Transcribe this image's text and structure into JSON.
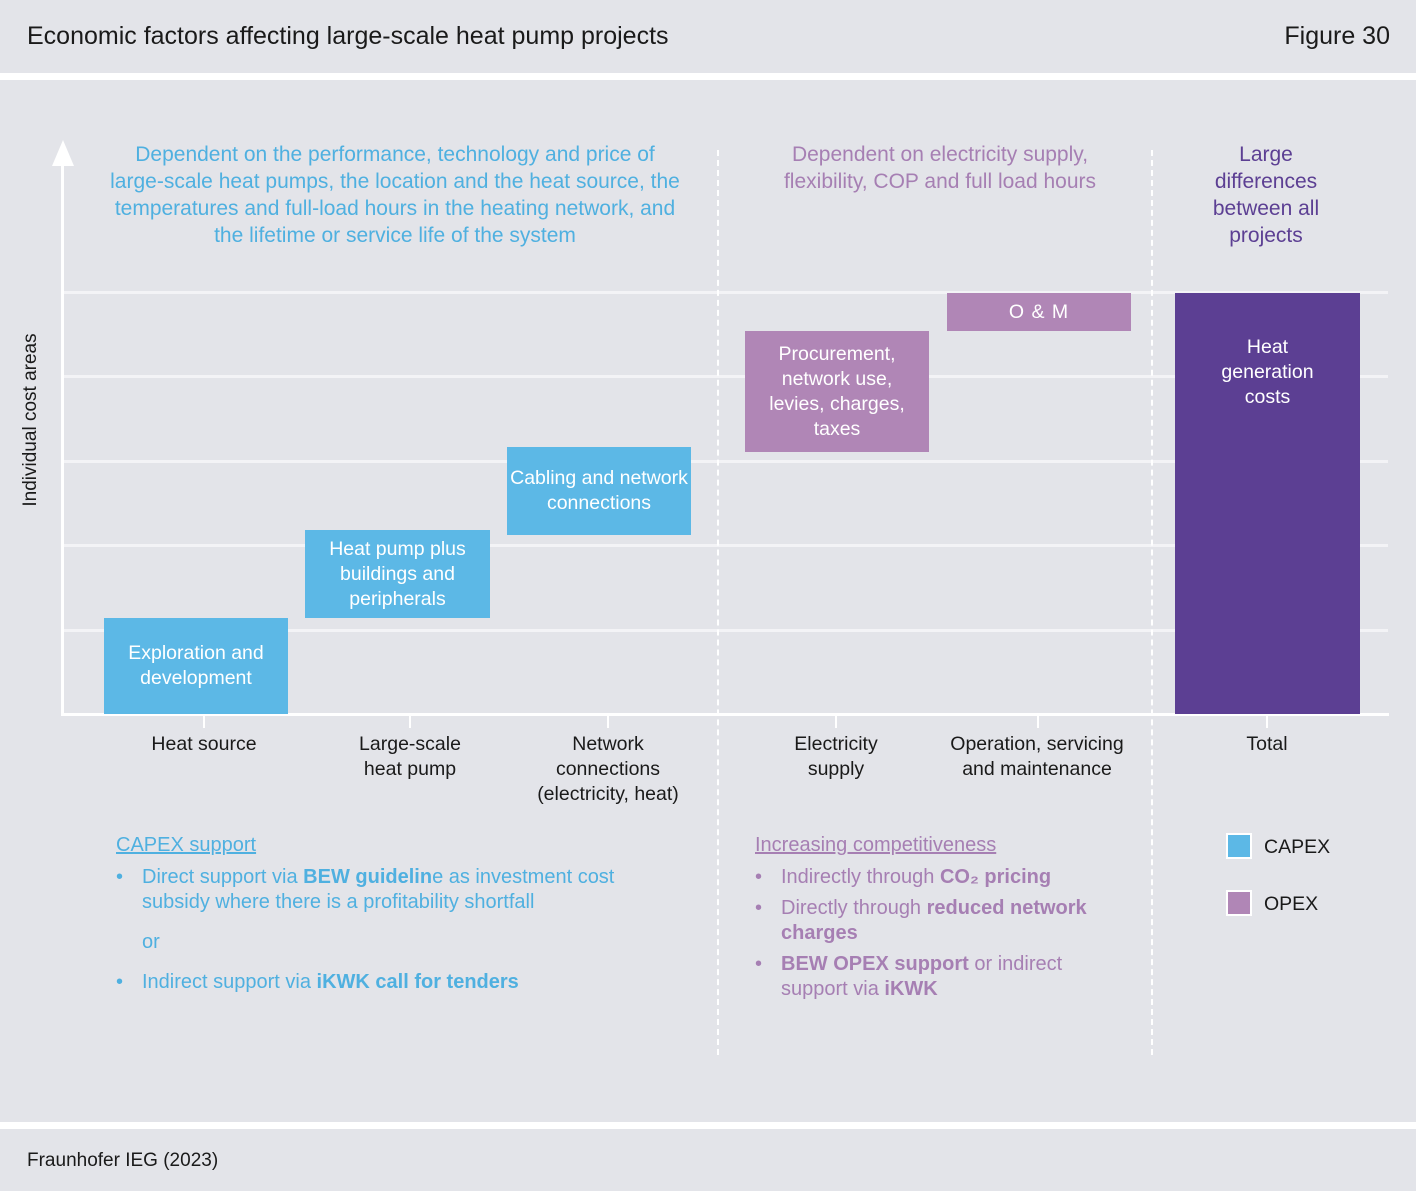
{
  "header": {
    "title": "Economic factors affecting large-scale heat pump projects",
    "figure": "Figure 30"
  },
  "footer": {
    "source": "Fraunhofer IEG (2023)"
  },
  "axis": {
    "y_label": "Individual cost areas"
  },
  "sections": {
    "capex_note": "Dependent on the performance, technology and price of large-scale heat pumps, the location and the heat source, the temperatures and full-load hours in the heating network, and the lifetime or service life of the system",
    "opex_note": "Dependent on electricity supply, flexibility, COP and full load hours",
    "total_note": "Large differences between all projects"
  },
  "bars": {
    "exploration": "Exploration and development",
    "heat_pump": "Heat pump plus buildings and peripherals",
    "cabling": "Cabling and network connections",
    "procurement": "Procurement, network use, levies, charges, taxes",
    "om": "O & M",
    "heat_generation": "Heat generation costs"
  },
  "categories": {
    "heat_source": "Heat source",
    "large_scale_heat_pump": "Large-scale heat pump",
    "network_connections": "Network connections (electricity, heat)",
    "electricity_supply": "Electricity supply",
    "operation": "Operation, servicing and maintenance",
    "total": "Total"
  },
  "capex_support": {
    "title": "CAPEX support",
    "item1_pre": "Direct support via ",
    "item1_bold": "BEW guidelin",
    "item1_post": "e as investment cost subsidy where there is a profitability shortfall",
    "or": "or",
    "item2_pre": "Indirect support via ",
    "item2_bold": "iKWK call for tenders"
  },
  "opex_support": {
    "title": "Increasing competitiveness",
    "item1_pre": "Indirectly through ",
    "item1_bold": "CO₂ pricing",
    "item2_pre": "Directly through ",
    "item2_bold": "reduced network charges",
    "item3_bold": "BEW OPEX support",
    "item3_post": " or indirect support via ",
    "item3_bold2": "iKWK"
  },
  "legend": {
    "capex": "CAPEX",
    "opex": "OPEX"
  },
  "bullet": "•",
  "colors": {
    "capex": "#5cb8e6",
    "opex": "#b086b6",
    "total": "#5c3f93",
    "background": "#e3e4e9"
  }
}
